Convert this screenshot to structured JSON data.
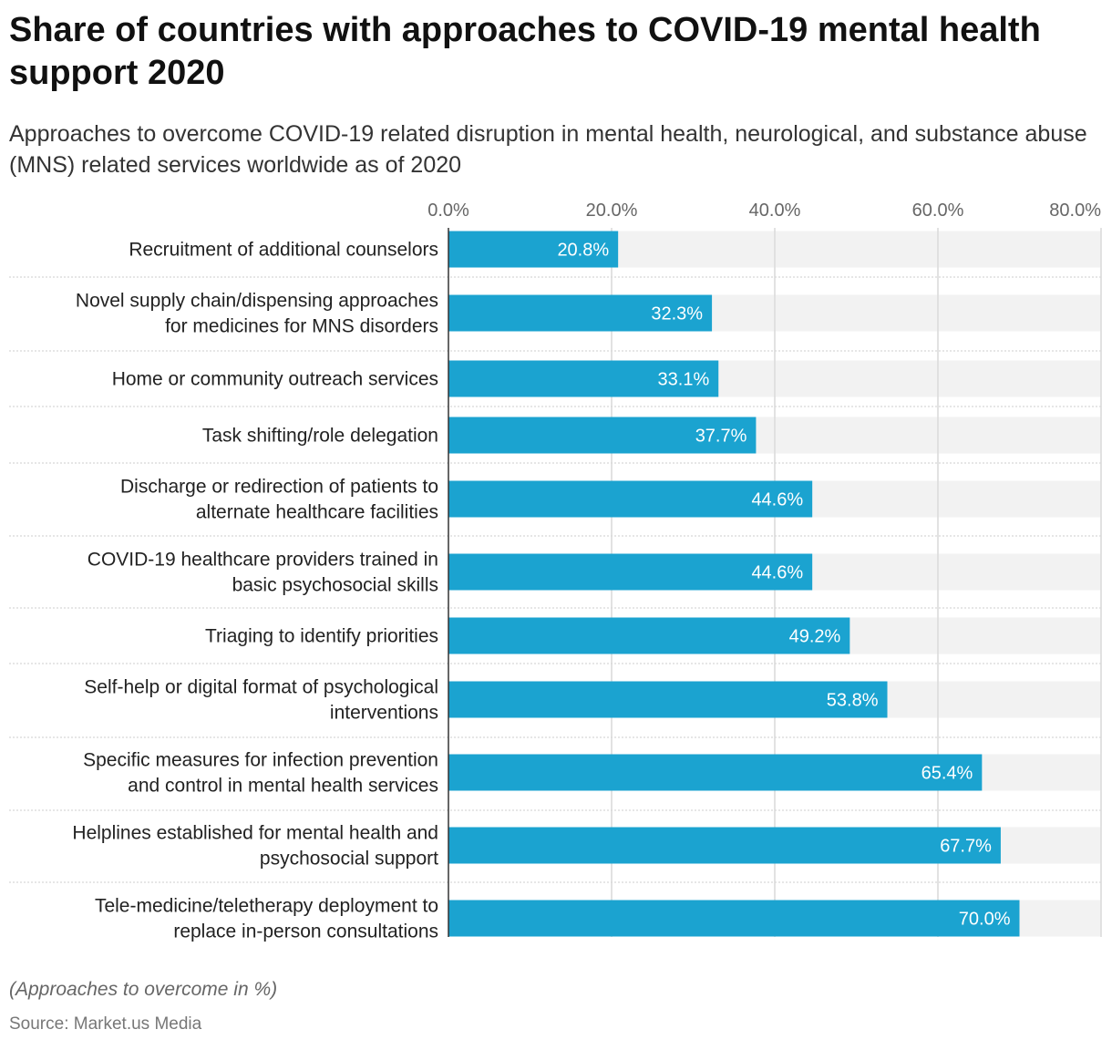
{
  "title": "Share of countries with approaches to COVID-19 mental health support 2020",
  "subtitle": "Approaches to overcome COVID-19 related disruption in mental health, neurological, and substance abuse (MNS) related services worldwide as of 2020",
  "note": "(Approaches to overcome in %)",
  "source": "Source: Market.us Media",
  "colors": {
    "bar": "#1ba3d0",
    "track": "#f2f2f2",
    "grid": "#d9d9d9",
    "separator": "#cccccc"
  },
  "chart_data": {
    "type": "bar",
    "orientation": "horizontal",
    "xlim": [
      0,
      80
    ],
    "ticks": [
      "0.0%",
      "20.0%",
      "40.0%",
      "60.0%",
      "80.0%"
    ],
    "tick_values": [
      0,
      20,
      40,
      60,
      80
    ],
    "grid": true,
    "categories": [
      [
        "Recruitment of additional counselors"
      ],
      [
        "Novel supply chain/dispensing approaches",
        "for medicines for MNS disorders"
      ],
      [
        "Home or community outreach services"
      ],
      [
        "Task shifting/role delegation"
      ],
      [
        "Discharge or redirection of patients to",
        "alternate healthcare facilities"
      ],
      [
        "COVID-19 healthcare providers trained in",
        "basic psychosocial skills"
      ],
      [
        "Triaging to identify priorities"
      ],
      [
        "Self-help or digital format of psychological",
        "interventions"
      ],
      [
        "Specific measures for infection prevention",
        "and control in mental health services"
      ],
      [
        "Helplines established for mental health and",
        "psychosocial support"
      ],
      [
        "Tele-medicine/teletherapy deployment to",
        "replace in-person consultations"
      ]
    ],
    "values": [
      20.8,
      32.3,
      33.1,
      37.7,
      44.6,
      44.6,
      49.2,
      53.8,
      65.4,
      67.7,
      70.0
    ],
    "labels": [
      "20.8%",
      "32.3%",
      "33.1%",
      "37.7%",
      "44.6%",
      "44.6%",
      "49.2%",
      "53.8%",
      "65.4%",
      "67.7%",
      "70.0%"
    ]
  }
}
